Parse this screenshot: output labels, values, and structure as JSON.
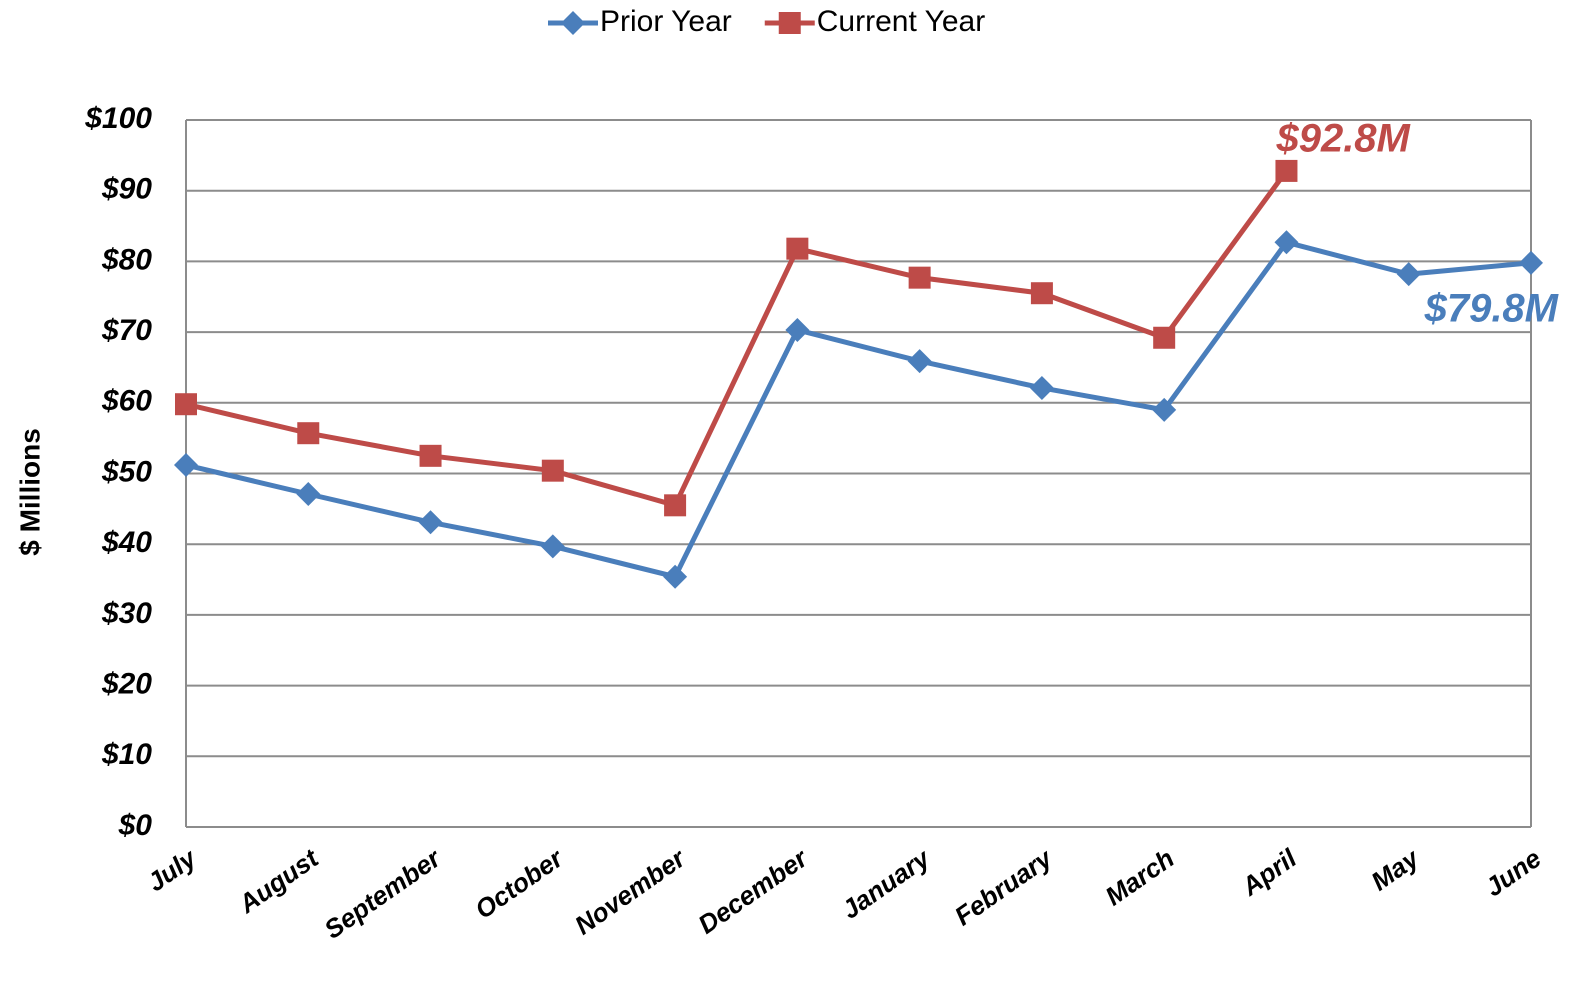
{
  "chart_data": {
    "type": "line",
    "y_label": "$ Millions",
    "categories": [
      "July",
      "August",
      "September",
      "October",
      "November",
      "December",
      "January",
      "February",
      "March",
      "April",
      "May",
      "June"
    ],
    "series": [
      {
        "name": "Prior Year",
        "color": "#4a7ebb",
        "marker": "diamond",
        "values": [
          51.2,
          47.1,
          43.1,
          39.7,
          35.4,
          70.3,
          65.9,
          62.1,
          59.0,
          82.7,
          78.2,
          79.8
        ],
        "value_labels": [
          null,
          null,
          null,
          null,
          null,
          null,
          null,
          null,
          null,
          null,
          null,
          "$79.8M"
        ]
      },
      {
        "name": "Current Year",
        "color": "#be4b48",
        "marker": "square",
        "values": [
          59.8,
          55.7,
          52.5,
          50.4,
          45.5,
          81.8,
          77.7,
          75.5,
          69.2,
          92.8,
          null,
          null
        ],
        "value_labels": [
          null,
          null,
          null,
          null,
          null,
          null,
          null,
          null,
          null,
          "$92.8M",
          null,
          null
        ]
      }
    ],
    "ylim": [
      0,
      100
    ],
    "yticks": [
      {
        "value": 0,
        "label": "$0"
      },
      {
        "value": 10,
        "label": "$10"
      },
      {
        "value": 20,
        "label": "$20"
      },
      {
        "value": 30,
        "label": "$30"
      },
      {
        "value": 40,
        "label": "$40"
      },
      {
        "value": 50,
        "label": "$50"
      },
      {
        "value": 60,
        "label": "$60"
      },
      {
        "value": 70,
        "label": "$70"
      },
      {
        "value": 80,
        "label": "$80"
      },
      {
        "value": 90,
        "label": "$90"
      },
      {
        "value": 100,
        "label": "$100"
      }
    ],
    "grid": true,
    "legend": "top"
  }
}
